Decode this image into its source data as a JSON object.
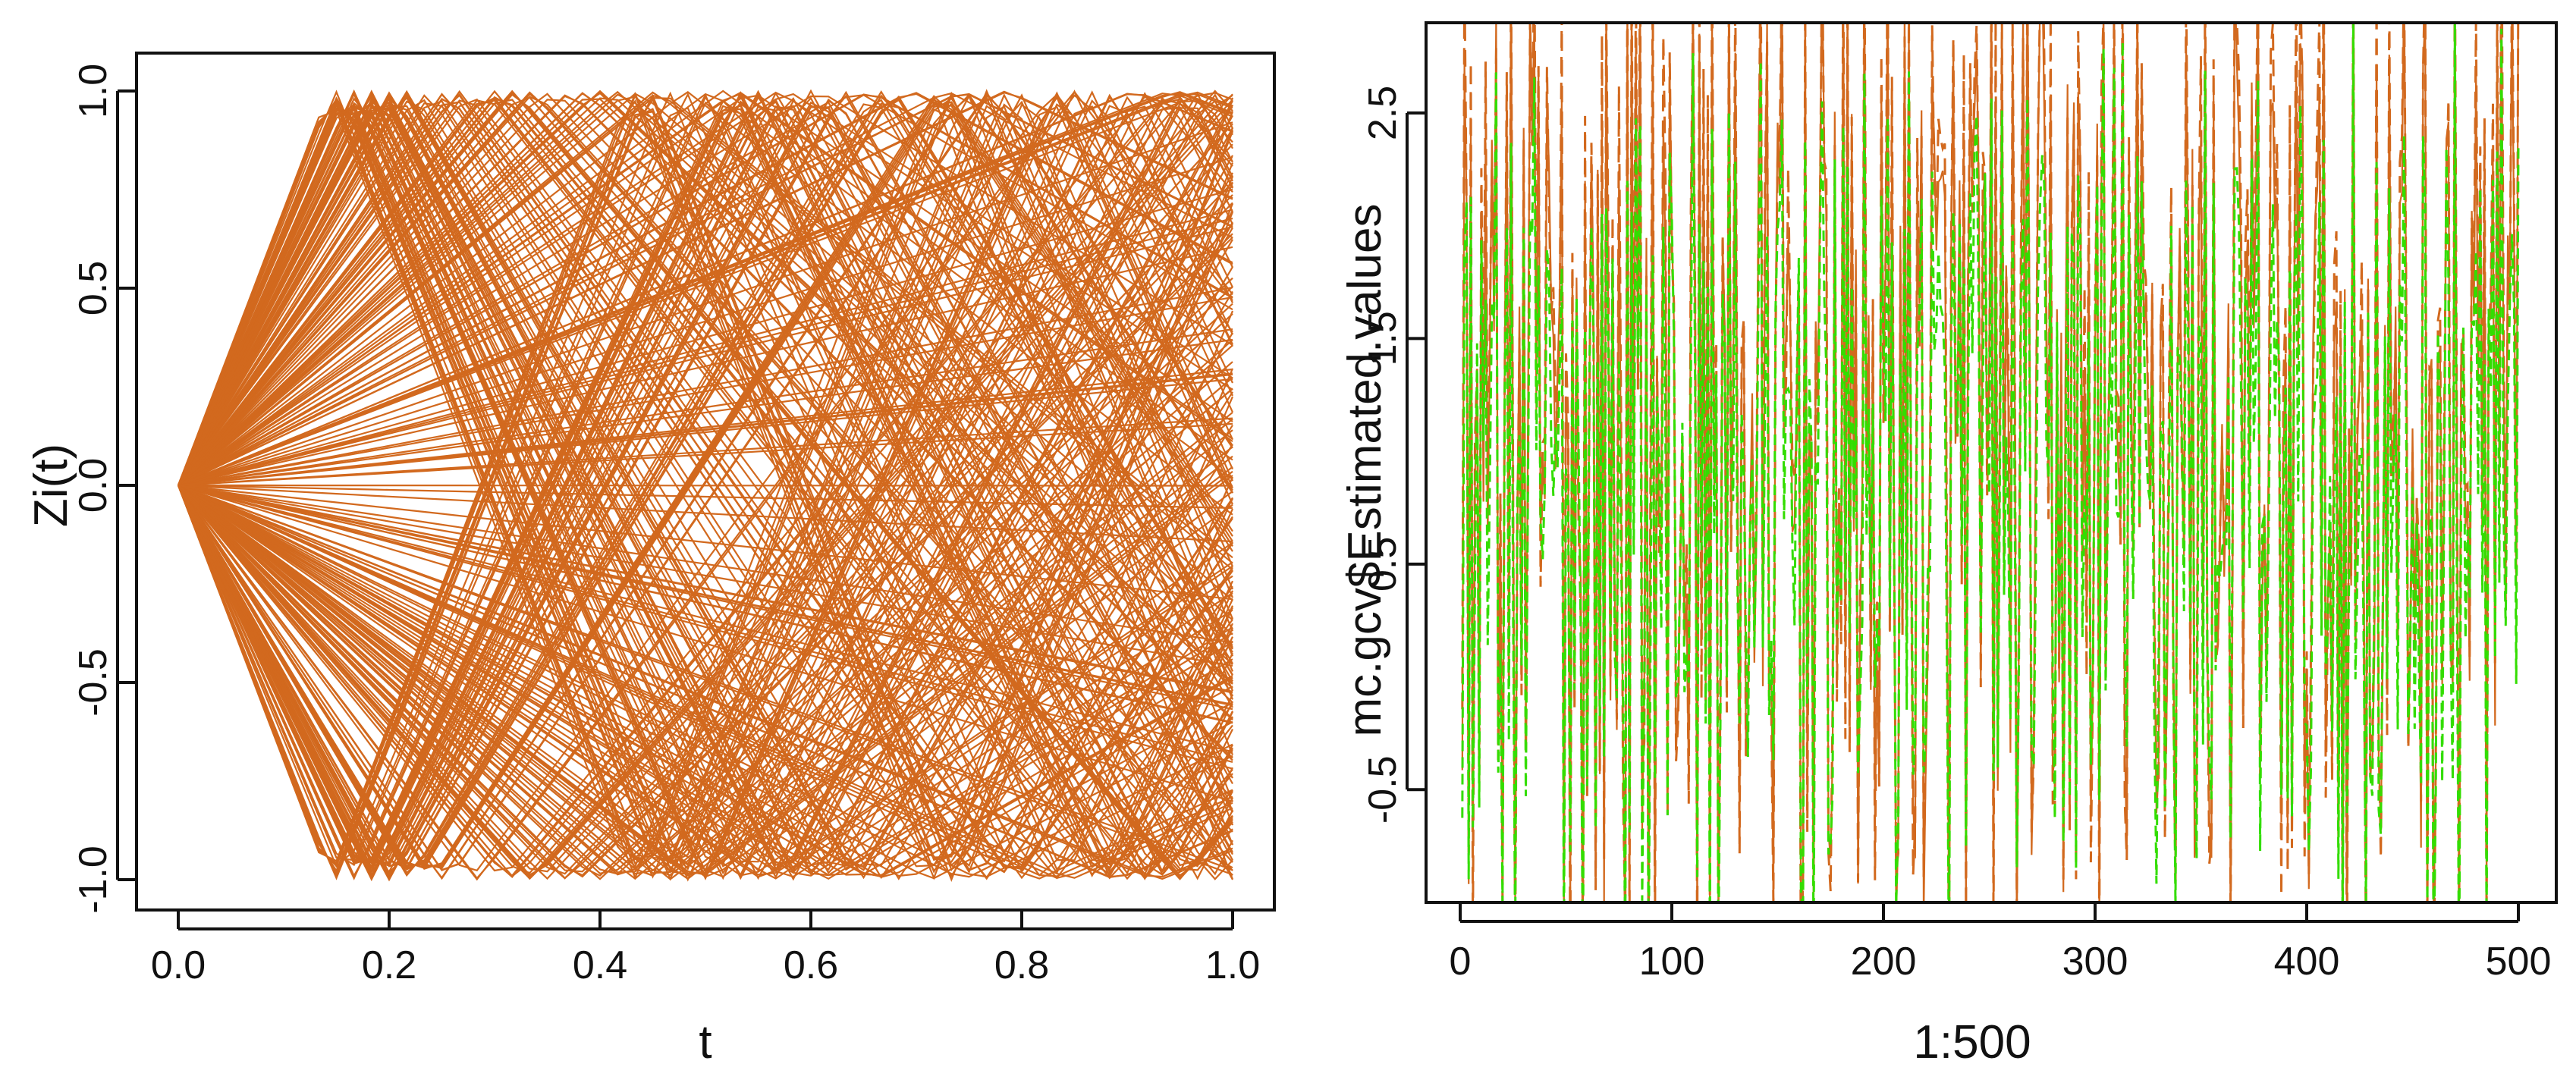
{
  "chart_data": [
    {
      "type": "line",
      "title": "",
      "xlabel": "t",
      "ylabel": "Zi(t)",
      "xlim": [
        0.0,
        1.0
      ],
      "ylim": [
        -1.0,
        1.0
      ],
      "x_ticks": [
        "0.0",
        "0.2",
        "0.4",
        "0.6",
        "0.8",
        "1.0"
      ],
      "y_ticks": [
        "-1.0",
        "-0.5",
        "0.0",
        "0.5",
        "1.0"
      ],
      "grid": false,
      "legend": "none",
      "line_color": "#D2691E",
      "series_description_count": 300,
      "series": []
    },
    {
      "type": "line",
      "title": "",
      "xlabel": "1:500",
      "ylabel": "mc.gcv$Estimated.values",
      "xlim": [
        0,
        500
      ],
      "ylim": [
        -1.0,
        2.9
      ],
      "x_ticks": [
        "0",
        "100",
        "200",
        "300",
        "400",
        "500"
      ],
      "y_ticks": [
        "-0.5",
        "0.5",
        "1.5",
        "2.5"
      ],
      "grid": false,
      "legend": "none",
      "series": [
        {
          "style": "solid",
          "color": "#D2691E",
          "points": 500
        },
        {
          "style": "dashed",
          "color": "#D2691E",
          "points": 500
        },
        {
          "style": "dashed",
          "color": "#33DD00",
          "points": 500
        }
      ]
    }
  ]
}
